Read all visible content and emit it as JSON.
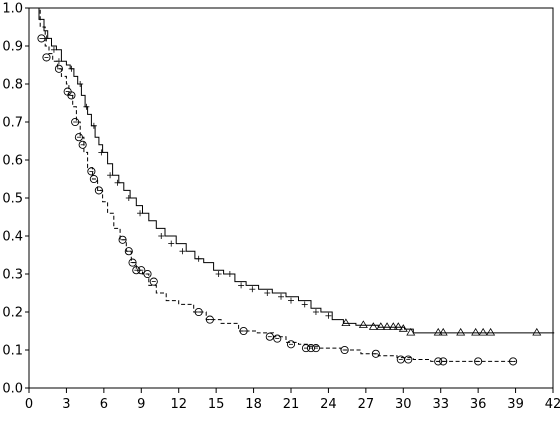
{
  "chart_data": {
    "type": "line",
    "title": "",
    "xlabel": "",
    "ylabel": "",
    "xlim": [
      0,
      42
    ],
    "ylim": [
      0,
      1.0
    ],
    "x_ticks": [
      0,
      3,
      6,
      9,
      12,
      15,
      18,
      21,
      24,
      27,
      30,
      33,
      36,
      39,
      42
    ],
    "y_ticks": [
      0.0,
      0.1,
      0.2,
      0.3,
      0.4,
      0.5,
      0.6,
      0.7,
      0.8,
      0.9,
      1.0
    ],
    "x_tick_labels": [
      "0",
      "3",
      "6",
      "9",
      "12",
      "15",
      "18",
      "21",
      "24",
      "27",
      "30",
      "33",
      "36",
      "39",
      "42"
    ],
    "y_tick_labels": [
      "0.0",
      "0.1",
      "0.2",
      "0.3",
      "0.4",
      "0.5",
      "0.6",
      "0.7",
      "0.8",
      "0.9",
      "1.0"
    ],
    "grid": false,
    "legend": "none",
    "series": [
      {
        "style": "solid",
        "color": "#000000",
        "censor_marker": "plus/triangle",
        "x": [
          0,
          0.8,
          1.2,
          1.5,
          1.8,
          2.2,
          2.6,
          3.0,
          3.3,
          3.6,
          3.9,
          4.2,
          4.5,
          4.7,
          5.0,
          5.3,
          5.6,
          5.9,
          6.3,
          6.7,
          7.2,
          7.6,
          8.1,
          8.6,
          9.1,
          9.6,
          10.2,
          10.9,
          11.8,
          12.6,
          13.3,
          14.0,
          14.8,
          15.6,
          16.5,
          17.4,
          18.4,
          19.5,
          20.6,
          21.6,
          22.6,
          23.4,
          24.3,
          25.2,
          26.2,
          28.0,
          30.1,
          30.8,
          44.0
        ],
        "y": [
          1.0,
          0.97,
          0.94,
          0.92,
          0.9,
          0.89,
          0.86,
          0.85,
          0.84,
          0.82,
          0.8,
          0.77,
          0.74,
          0.72,
          0.69,
          0.66,
          0.64,
          0.62,
          0.59,
          0.56,
          0.54,
          0.52,
          0.5,
          0.48,
          0.46,
          0.44,
          0.42,
          0.4,
          0.38,
          0.36,
          0.34,
          0.33,
          0.31,
          0.3,
          0.28,
          0.27,
          0.26,
          0.25,
          0.24,
          0.23,
          0.21,
          0.2,
          0.18,
          0.17,
          0.165,
          0.16,
          0.155,
          0.145,
          0.145
        ],
        "censored_x": [
          1.4,
          2.0,
          2.4,
          3.4,
          4.1,
          4.6,
          5.2,
          5.8,
          6.5,
          7.1,
          8.0,
          8.9,
          10.6,
          11.4,
          12.3,
          13.6,
          15.2,
          16.1,
          17.0,
          17.9,
          19.1,
          20.2,
          21.0,
          22.1,
          23.0,
          24.0,
          25.4,
          26.8,
          27.6,
          28.2,
          28.7,
          29.2,
          29.6,
          30.0,
          30.6,
          32.8,
          33.2,
          34.6,
          35.8,
          36.4,
          37.0,
          40.7
        ],
        "censored_y": [
          0.92,
          0.89,
          0.86,
          0.84,
          0.8,
          0.74,
          0.69,
          0.62,
          0.56,
          0.54,
          0.5,
          0.46,
          0.4,
          0.38,
          0.36,
          0.34,
          0.3,
          0.3,
          0.27,
          0.26,
          0.25,
          0.24,
          0.23,
          0.22,
          0.2,
          0.19,
          0.17,
          0.165,
          0.16,
          0.16,
          0.16,
          0.16,
          0.16,
          0.155,
          0.145,
          0.145,
          0.145,
          0.145,
          0.145,
          0.145,
          0.145,
          0.145
        ]
      },
      {
        "style": "dashed",
        "color": "#000000",
        "censor_marker": "circle",
        "x": [
          0,
          0.9,
          1.3,
          1.6,
          1.9,
          2.3,
          2.6,
          3.0,
          3.2,
          3.5,
          3.8,
          4.1,
          4.4,
          4.7,
          5.1,
          5.5,
          5.9,
          6.3,
          6.8,
          7.3,
          7.8,
          8.2,
          8.6,
          9.1,
          9.6,
          10.2,
          11.0,
          12.0,
          13.2,
          14.2,
          15.4,
          16.8,
          18.3,
          19.6,
          20.6,
          21.6,
          22.4,
          23.2,
          25.0,
          26.6,
          28.0,
          29.5,
          30.8,
          32.2,
          39.0
        ],
        "y": [
          1.0,
          0.95,
          0.9,
          0.88,
          0.86,
          0.84,
          0.82,
          0.8,
          0.77,
          0.74,
          0.7,
          0.66,
          0.62,
          0.58,
          0.55,
          0.52,
          0.49,
          0.46,
          0.42,
          0.39,
          0.36,
          0.33,
          0.31,
          0.3,
          0.27,
          0.25,
          0.23,
          0.22,
          0.2,
          0.18,
          0.17,
          0.15,
          0.145,
          0.135,
          0.12,
          0.115,
          0.11,
          0.105,
          0.1,
          0.09,
          0.085,
          0.08,
          0.075,
          0.07,
          0.07
        ],
        "censored_x": [
          1.0,
          1.4,
          2.4,
          3.1,
          3.4,
          3.7,
          4.0,
          4.3,
          5.0,
          5.2,
          5.6,
          7.5,
          8.0,
          8.3,
          8.6,
          9.0,
          9.5,
          10.0,
          13.6,
          14.5,
          17.2,
          19.3,
          19.9,
          21.0,
          22.2,
          22.6,
          23.0,
          25.3,
          27.8,
          29.8,
          30.4,
          32.8,
          33.2,
          36.0,
          38.8
        ],
        "censored_y": [
          0.92,
          0.87,
          0.84,
          0.78,
          0.77,
          0.7,
          0.66,
          0.64,
          0.57,
          0.55,
          0.52,
          0.39,
          0.36,
          0.33,
          0.31,
          0.31,
          0.3,
          0.28,
          0.2,
          0.18,
          0.15,
          0.135,
          0.13,
          0.115,
          0.105,
          0.105,
          0.105,
          0.1,
          0.09,
          0.075,
          0.075,
          0.07,
          0.07,
          0.07,
          0.07
        ]
      }
    ]
  }
}
